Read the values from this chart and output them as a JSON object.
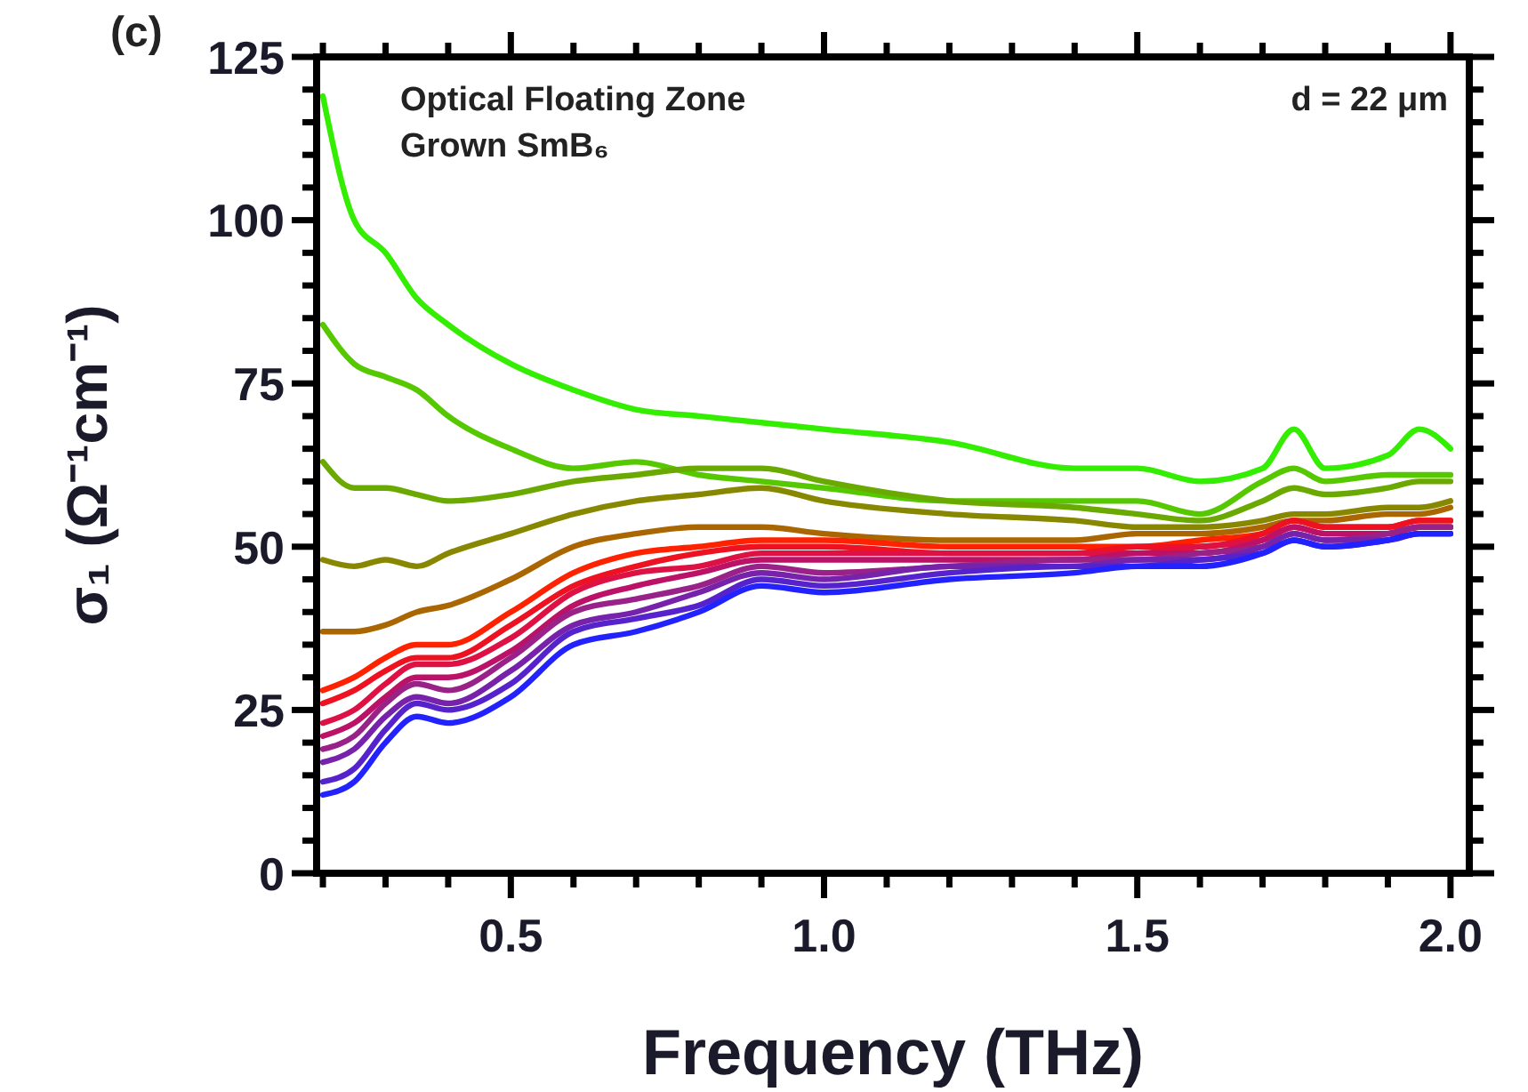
{
  "chart_data": {
    "type": "line",
    "xlabel": "Frequency (THz)",
    "ylabel": "σ₁ (Ω⁻¹cm⁻¹)",
    "annotations": [
      "(c)",
      "Optical Floating Zone",
      "Grown SmB₆",
      "d = 22 μm"
    ],
    "x": [
      0.2,
      0.25,
      0.3,
      0.35,
      0.4,
      0.5,
      0.6,
      0.7,
      0.8,
      0.9,
      1.0,
      1.2,
      1.4,
      1.5,
      1.6,
      1.7,
      1.75,
      1.8,
      1.9,
      1.95,
      2.0
    ],
    "xlim": [
      0.19,
      2.03
    ],
    "ylim": [
      0,
      125
    ],
    "xticks": [
      {
        "value": 0.2,
        "label": null
      },
      {
        "value": 0.3,
        "label": null
      },
      {
        "value": 0.4,
        "label": null
      },
      0.5,
      {
        "value": 0.6,
        "label": null
      },
      {
        "value": 0.7,
        "label": null
      },
      {
        "value": 0.8,
        "label": null
      },
      {
        "value": 0.9,
        "label": null
      },
      {
        "value": 1.0,
        "label": "1.0"
      },
      {
        "value": 1.1,
        "label": null
      },
      {
        "value": 1.2,
        "label": null
      },
      {
        "value": 1.3,
        "label": null
      },
      {
        "value": 1.4,
        "label": null
      },
      1.5,
      {
        "value": 1.6,
        "label": null
      },
      {
        "value": 1.7,
        "label": null
      },
      {
        "value": 1.8,
        "label": null
      },
      {
        "value": 1.9,
        "label": null
      },
      {
        "value": 2.0,
        "label": "2.0"
      }
    ],
    "yticks": [
      0,
      {
        "value": 5,
        "label": null
      },
      {
        "value": 10,
        "label": null
      },
      {
        "value": 15,
        "label": null
      },
      {
        "value": 20,
        "label": null
      },
      25,
      {
        "value": 30,
        "label": null
      },
      {
        "value": 35,
        "label": null
      },
      {
        "value": 40,
        "label": null
      },
      {
        "value": 45,
        "label": null
      },
      50,
      {
        "value": 55,
        "label": null
      },
      {
        "value": 60,
        "label": null
      },
      {
        "value": 65,
        "label": null
      },
      {
        "value": 70,
        "label": null
      },
      75,
      {
        "value": 80,
        "label": null
      },
      {
        "value": 85,
        "label": null
      },
      {
        "value": 90,
        "label": null
      },
      {
        "value": 95,
        "label": null
      },
      100,
      {
        "value": 105,
        "label": null
      },
      {
        "value": 110,
        "label": null
      },
      {
        "value": 115,
        "label": null
      },
      {
        "value": 120,
        "label": null
      },
      125
    ],
    "grid": false,
    "line_style": "solid",
    "series": [
      {
        "color": "#33ee00",
        "values": [
          119,
          100,
          95,
          88,
          84,
          78,
          74,
          71,
          70,
          69,
          68,
          66,
          62,
          62,
          60,
          62,
          68,
          62,
          64,
          68,
          65
        ]
      },
      {
        "color": "#55c800",
        "values": [
          84,
          78,
          76,
          74,
          70,
          65,
          62,
          63,
          61,
          60,
          59,
          57,
          57,
          57,
          55,
          60,
          62,
          60,
          61,
          61,
          61
        ]
      },
      {
        "color": "#6aaa00",
        "values": [
          63,
          59,
          59,
          58,
          57,
          58,
          60,
          61,
          62,
          62,
          60,
          57,
          56,
          55,
          54,
          57,
          59,
          58,
          59,
          60,
          60
        ]
      },
      {
        "color": "#888800",
        "values": [
          48,
          47,
          48,
          47,
          49,
          52,
          55,
          57,
          58,
          59,
          57,
          55,
          54,
          53,
          53,
          54,
          55,
          55,
          56,
          56,
          57
        ]
      },
      {
        "color": "#aa6600",
        "values": [
          37,
          37,
          38,
          40,
          41,
          45,
          50,
          52,
          53,
          53,
          52,
          51,
          51,
          52,
          52,
          53,
          54,
          54,
          55,
          55,
          56
        ]
      },
      {
        "color": "#ff2200",
        "values": [
          28,
          30,
          33,
          35,
          35,
          40,
          46,
          49,
          50,
          51,
          51,
          50,
          50,
          50,
          51,
          52,
          54,
          53,
          53,
          54,
          54
        ]
      },
      {
        "color": "#ee1122",
        "values": [
          26,
          28,
          31,
          33,
          33,
          38,
          44,
          47,
          49,
          50,
          50,
          49,
          49,
          50,
          50,
          52,
          54,
          53,
          53,
          54,
          54
        ]
      },
      {
        "color": "#dd1144",
        "values": [
          23,
          25,
          29,
          32,
          32,
          36,
          43,
          46,
          47,
          49,
          49,
          49,
          49,
          49,
          50,
          51,
          53,
          52,
          52,
          53,
          53
        ]
      },
      {
        "color": "#bb1166",
        "values": [
          21,
          23,
          27,
          30,
          30,
          34,
          41,
          44,
          46,
          48,
          48,
          48,
          48,
          49,
          49,
          51,
          53,
          52,
          52,
          53,
          53
        ]
      },
      {
        "color": "#992288",
        "values": [
          19,
          21,
          26,
          29,
          28,
          33,
          40,
          42,
          44,
          47,
          46,
          47,
          48,
          48,
          49,
          50,
          52,
          51,
          52,
          53,
          53
        ]
      },
      {
        "color": "#7722aa",
        "values": [
          17,
          19,
          24,
          27,
          26,
          31,
          38,
          40,
          43,
          46,
          45,
          47,
          47,
          48,
          48,
          50,
          52,
          51,
          51,
          52,
          52
        ]
      },
      {
        "color": "#5522cc",
        "values": [
          14,
          16,
          22,
          26,
          25,
          29,
          37,
          39,
          41,
          45,
          44,
          46,
          47,
          47,
          48,
          49,
          51,
          50,
          51,
          52,
          52
        ]
      },
      {
        "color": "#2222ff",
        "values": [
          12,
          14,
          20,
          24,
          23,
          27,
          35,
          37,
          40,
          44,
          43,
          45,
          46,
          47,
          47,
          49,
          51,
          50,
          51,
          52,
          52
        ]
      }
    ]
  }
}
